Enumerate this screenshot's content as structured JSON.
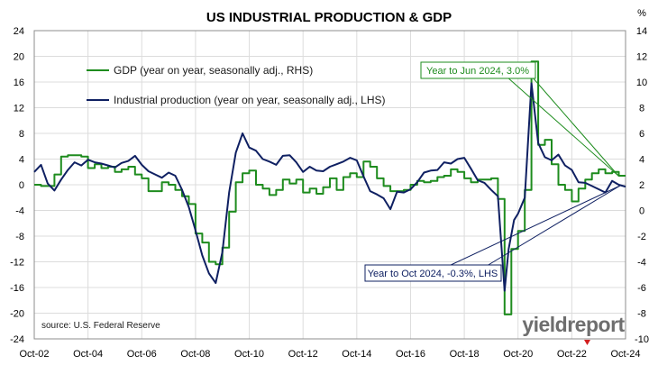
{
  "chart_data": {
    "type": "line",
    "title": "US INDUSTRIAL PRODUCTION & GDP",
    "right_axis_unit": "%",
    "source": "source: U.S. Federal Reserve",
    "logo": "yieldreport",
    "x_tick_labels": [
      "Oct-02",
      "Oct-04",
      "Oct-06",
      "Oct-08",
      "Oct-10",
      "Oct-12",
      "Oct-14",
      "Oct-16",
      "Oct-18",
      "Oct-20",
      "Oct-22",
      "Oct-24"
    ],
    "x_range": [
      2002.75,
      2024.75
    ],
    "left_axis": {
      "ylim": [
        -24,
        24
      ],
      "ticks": [
        24,
        20,
        16,
        12,
        8,
        4,
        0,
        -4,
        -8,
        -12,
        -16,
        -20,
        -24
      ]
    },
    "right_axis": {
      "ylim": [
        -10,
        14
      ],
      "ticks": [
        14,
        12,
        10,
        8,
        6,
        4,
        2,
        0,
        -2,
        -4,
        -6,
        -8,
        -10
      ]
    },
    "grid": true,
    "legend_position": "top-left",
    "series": [
      {
        "name": "GDP (year on year, seasonally adj., RHS)",
        "axis": "right",
        "color": "#1e8c1e",
        "step": true,
        "x": [
          2002.75,
          2003.0,
          2003.25,
          2003.5,
          2003.75,
          2004.0,
          2004.25,
          2004.5,
          2004.75,
          2005.0,
          2005.25,
          2005.5,
          2005.75,
          2006.0,
          2006.25,
          2006.5,
          2006.75,
          2007.0,
          2007.25,
          2007.5,
          2007.75,
          2008.0,
          2008.25,
          2008.5,
          2008.75,
          2009.0,
          2009.25,
          2009.5,
          2009.75,
          2010.0,
          2010.25,
          2010.5,
          2010.75,
          2011.0,
          2011.25,
          2011.5,
          2011.75,
          2012.0,
          2012.25,
          2012.5,
          2012.75,
          2013.0,
          2013.25,
          2013.5,
          2013.75,
          2014.0,
          2014.25,
          2014.5,
          2014.75,
          2015.0,
          2015.25,
          2015.5,
          2015.75,
          2016.0,
          2016.25,
          2016.5,
          2016.75,
          2017.0,
          2017.25,
          2017.5,
          2017.75,
          2018.0,
          2018.25,
          2018.5,
          2018.75,
          2019.0,
          2019.25,
          2019.5,
          2019.75,
          2020.0,
          2020.25,
          2020.5,
          2020.75,
          2021.0,
          2021.25,
          2021.5,
          2021.75,
          2022.0,
          2022.25,
          2022.5,
          2022.75,
          2023.0,
          2023.25,
          2023.5,
          2023.75,
          2024.0,
          2024.25,
          2024.5
        ],
        "values": [
          2.0,
          1.9,
          1.9,
          2.8,
          4.2,
          4.3,
          4.3,
          4.2,
          3.3,
          3.6,
          3.3,
          3.4,
          3.0,
          3.2,
          3.4,
          2.8,
          2.5,
          1.5,
          1.5,
          2.2,
          2.0,
          1.6,
          1.1,
          0.5,
          -1.8,
          -2.5,
          -4.0,
          -4.2,
          -2.9,
          -0.1,
          2.2,
          2.9,
          3.1,
          2.0,
          1.7,
          1.2,
          1.6,
          2.4,
          2.1,
          2.4,
          1.4,
          1.7,
          1.3,
          1.8,
          2.5,
          1.6,
          2.6,
          2.9,
          2.6,
          3.8,
          3.4,
          2.5,
          1.9,
          1.5,
          1.5,
          1.6,
          2.0,
          2.3,
          2.2,
          2.3,
          2.6,
          2.7,
          3.2,
          3.0,
          2.5,
          2.2,
          2.4,
          2.4,
          2.5,
          0.9,
          -8.1,
          -3.0,
          -1.6,
          1.6,
          11.6,
          5.1,
          5.5,
          3.6,
          2.0,
          1.6,
          0.7,
          1.7,
          2.4,
          2.9,
          3.2,
          2.9,
          3.0,
          2.7
        ]
      },
      {
        "name": "Industrial production (year on year, seasonally adj., LHS)",
        "axis": "left",
        "color": "#0f2062",
        "step": false,
        "x": [
          2002.75,
          2003.0,
          2003.25,
          2003.5,
          2003.75,
          2004.0,
          2004.25,
          2004.5,
          2004.75,
          2005.0,
          2005.25,
          2005.5,
          2005.75,
          2006.0,
          2006.25,
          2006.5,
          2006.75,
          2007.0,
          2007.25,
          2007.5,
          2007.75,
          2008.0,
          2008.25,
          2008.5,
          2008.75,
          2009.0,
          2009.25,
          2009.5,
          2009.75,
          2010.0,
          2010.25,
          2010.5,
          2010.75,
          2011.0,
          2011.25,
          2011.5,
          2011.75,
          2012.0,
          2012.25,
          2012.5,
          2012.75,
          2013.0,
          2013.25,
          2013.5,
          2013.75,
          2014.0,
          2014.25,
          2014.5,
          2014.75,
          2015.0,
          2015.25,
          2015.5,
          2015.75,
          2016.0,
          2016.25,
          2016.5,
          2016.75,
          2017.0,
          2017.25,
          2017.5,
          2017.75,
          2018.0,
          2018.25,
          2018.5,
          2018.75,
          2019.0,
          2019.25,
          2019.5,
          2019.75,
          2020.0,
          2020.25,
          2020.4,
          2020.6,
          2020.75,
          2021.0,
          2021.25,
          2021.5,
          2021.75,
          2022.0,
          2022.25,
          2022.5,
          2022.75,
          2023.0,
          2023.25,
          2023.5,
          2023.75,
          2024.0,
          2024.25,
          2024.5,
          2024.75
        ],
        "values": [
          2.0,
          3.1,
          0.2,
          -0.9,
          0.8,
          2.3,
          3.5,
          3.0,
          3.9,
          3.5,
          3.3,
          3.0,
          2.7,
          3.4,
          3.7,
          4.5,
          3.1,
          2.1,
          1.6,
          1.1,
          1.9,
          1.4,
          -0.8,
          -3.5,
          -7.1,
          -11.0,
          -13.8,
          -15.3,
          -10.5,
          -1.2,
          5.0,
          8.0,
          5.8,
          5.3,
          4.0,
          3.6,
          3.1,
          4.5,
          4.6,
          3.5,
          2.0,
          2.8,
          2.2,
          2.1,
          2.8,
          3.2,
          3.6,
          4.2,
          3.8,
          1.3,
          -1.0,
          -1.5,
          -2.1,
          -3.8,
          -1.1,
          -1.2,
          -0.7,
          0.4,
          1.9,
          2.2,
          2.3,
          3.5,
          3.3,
          4.0,
          4.2,
          2.5,
          0.7,
          0.3,
          -0.8,
          -1.8,
          -16.5,
          -10.0,
          -5.5,
          -4.5,
          -2.0,
          15.8,
          6.5,
          4.3,
          3.8,
          4.7,
          3.0,
          2.3,
          0.4,
          0.3,
          -0.2,
          -0.7,
          -1.2,
          0.6,
          0.0,
          -0.3
        ]
      }
    ],
    "annotations": [
      {
        "text": "Year to Jun 2024, 3.0%",
        "color": "#1e8c1e"
      },
      {
        "text": "Year to Oct 2024, -0.3%, LHS",
        "color": "#0f2062"
      }
    ]
  }
}
